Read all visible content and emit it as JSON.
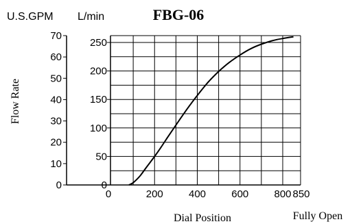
{
  "chart_data": {
    "type": "line",
    "title": "FBG-06",
    "xlabel": "Dial Position",
    "xlabel_right": "Fully Open",
    "ylabel": "Flow Rate",
    "unit_outer": "U.S.GPM",
    "unit_inner": "L/min",
    "x_ticks": [
      "0",
      "200",
      "400",
      "600",
      "800",
      "850"
    ],
    "gpm_ticks": [
      "0",
      "10",
      "20",
      "30",
      "40",
      "50",
      "60",
      "70"
    ],
    "lmin_ticks": [
      "0",
      "50",
      "100",
      "150",
      "200",
      "250"
    ],
    "xlim": [
      0,
      850
    ],
    "ylim_lmin": [
      0,
      265
    ],
    "ylim_gpm": [
      0,
      70
    ],
    "grid": true,
    "series": [
      {
        "x": [
          80,
          100,
          130,
          160,
          200,
          230,
          260,
          300,
          350,
          400,
          450,
          500,
          550,
          600,
          650,
          700,
          750,
          800,
          850
        ],
        "y": [
          0,
          4,
          15,
          30,
          50,
          66,
          83,
          105,
          132,
          157,
          180,
          199,
          215,
          228,
          239,
          247,
          253,
          257,
          260
        ]
      }
    ]
  }
}
